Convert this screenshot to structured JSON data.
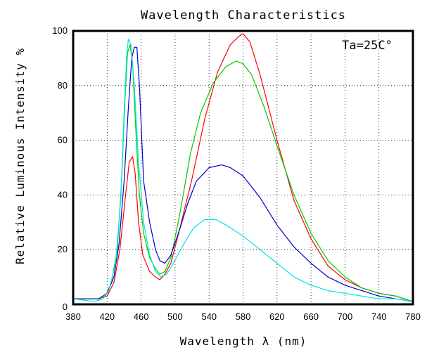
{
  "chart_data": {
    "type": "line",
    "title": "Wavelength Characteristics",
    "xlabel": "Wavelength λ (nm)",
    "ylabel": "Relative Luminous Intensity %",
    "annotation": "Ta=25C°",
    "xlim": [
      380,
      780
    ],
    "ylim": [
      0,
      100
    ],
    "x_ticks": [
      380,
      420,
      460,
      500,
      540,
      580,
      620,
      660,
      700,
      740,
      780
    ],
    "x_tick_labels": [
      "380",
      "420",
      "460",
      "500",
      "540",
      "580",
      "620",
      "660",
      "700",
      "740",
      "780"
    ],
    "y_ticks": [
      0,
      20,
      40,
      60,
      80,
      100
    ],
    "y_tick_labels": [
      "0",
      "20",
      "40",
      "60",
      "80",
      "100"
    ],
    "grid": true,
    "series": [
      {
        "color": "#ff0000",
        "points": [
          [
            380,
            2
          ],
          [
            410,
            2
          ],
          [
            420,
            3
          ],
          [
            428,
            8
          ],
          [
            435,
            20
          ],
          [
            441,
            38
          ],
          [
            446,
            52
          ],
          [
            450,
            54
          ],
          [
            453,
            48
          ],
          [
            457,
            30
          ],
          [
            462,
            18
          ],
          [
            470,
            12
          ],
          [
            477,
            10
          ],
          [
            482,
            9
          ],
          [
            488,
            11
          ],
          [
            495,
            15
          ],
          [
            505,
            27
          ],
          [
            520,
            46
          ],
          [
            535,
            68
          ],
          [
            550,
            85
          ],
          [
            565,
            95
          ],
          [
            575,
            98
          ],
          [
            580,
            99
          ],
          [
            588,
            96
          ],
          [
            600,
            84
          ],
          [
            620,
            60
          ],
          [
            640,
            38
          ],
          [
            660,
            24
          ],
          [
            680,
            14
          ],
          [
            700,
            9
          ],
          [
            720,
            6
          ],
          [
            740,
            4
          ],
          [
            760,
            3
          ],
          [
            780,
            1
          ]
        ]
      },
      {
        "color": "#00cc00",
        "points": [
          [
            380,
            2
          ],
          [
            410,
            2
          ],
          [
            418,
            3
          ],
          [
            425,
            8
          ],
          [
            432,
            20
          ],
          [
            437,
            45
          ],
          [
            441,
            75
          ],
          [
            444,
            92
          ],
          [
            447,
            95
          ],
          [
            450,
            88
          ],
          [
            454,
            62
          ],
          [
            458,
            40
          ],
          [
            463,
            26
          ],
          [
            470,
            17
          ],
          [
            477,
            13
          ],
          [
            482,
            11
          ],
          [
            488,
            12
          ],
          [
            495,
            17
          ],
          [
            505,
            32
          ],
          [
            518,
            55
          ],
          [
            530,
            70
          ],
          [
            545,
            81
          ],
          [
            560,
            87
          ],
          [
            572,
            89
          ],
          [
            580,
            88
          ],
          [
            590,
            84
          ],
          [
            605,
            72
          ],
          [
            620,
            58
          ],
          [
            640,
            40
          ],
          [
            660,
            26
          ],
          [
            680,
            16
          ],
          [
            700,
            10
          ],
          [
            720,
            6
          ],
          [
            740,
            4
          ],
          [
            760,
            3
          ],
          [
            780,
            1
          ]
        ]
      },
      {
        "color": "#0000cc",
        "points": [
          [
            380,
            2
          ],
          [
            410,
            2
          ],
          [
            420,
            4
          ],
          [
            428,
            10
          ],
          [
            434,
            22
          ],
          [
            440,
            45
          ],
          [
            445,
            72
          ],
          [
            449,
            90
          ],
          [
            452,
            94
          ],
          [
            455,
            94
          ],
          [
            458,
            80
          ],
          [
            463,
            45
          ],
          [
            470,
            30
          ],
          [
            477,
            20
          ],
          [
            482,
            16
          ],
          [
            488,
            15
          ],
          [
            495,
            18
          ],
          [
            505,
            27
          ],
          [
            515,
            37
          ],
          [
            525,
            45
          ],
          [
            540,
            50
          ],
          [
            555,
            51
          ],
          [
            565,
            50
          ],
          [
            580,
            47
          ],
          [
            600,
            39
          ],
          [
            620,
            29
          ],
          [
            640,
            21
          ],
          [
            660,
            15
          ],
          [
            680,
            10
          ],
          [
            700,
            7
          ],
          [
            720,
            5
          ],
          [
            740,
            3
          ],
          [
            760,
            2
          ],
          [
            780,
            1
          ]
        ]
      },
      {
        "color": "#00e5e5",
        "points": [
          [
            380,
            2
          ],
          [
            405,
            1
          ],
          [
            415,
            2
          ],
          [
            422,
            5
          ],
          [
            430,
            15
          ],
          [
            436,
            38
          ],
          [
            440,
            70
          ],
          [
            443,
            91
          ],
          [
            445,
            97
          ],
          [
            448,
            95
          ],
          [
            452,
            80
          ],
          [
            457,
            52
          ],
          [
            463,
            30
          ],
          [
            470,
            18
          ],
          [
            477,
            12
          ],
          [
            483,
            10
          ],
          [
            490,
            11
          ],
          [
            498,
            15
          ],
          [
            510,
            22
          ],
          [
            522,
            28
          ],
          [
            535,
            31
          ],
          [
            548,
            31
          ],
          [
            560,
            29
          ],
          [
            580,
            25
          ],
          [
            600,
            20
          ],
          [
            620,
            15
          ],
          [
            640,
            10
          ],
          [
            660,
            7
          ],
          [
            680,
            5
          ],
          [
            700,
            4
          ],
          [
            720,
            3
          ],
          [
            740,
            2
          ],
          [
            760,
            2
          ],
          [
            780,
            1
          ]
        ]
      }
    ]
  }
}
